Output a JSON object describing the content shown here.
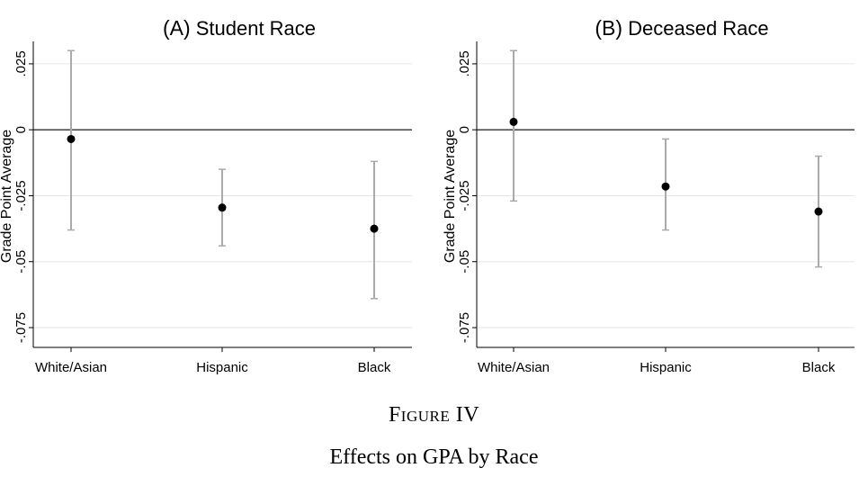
{
  "figure": {
    "label": "Figure IV",
    "caption": "Effects on GPA by Race"
  },
  "colors": {
    "point": "#000000",
    "error_bar": "#aaaaaa",
    "zero_line": "#000000",
    "grid": "#e6e6e6",
    "axis": "#000000"
  },
  "chart_data": [
    {
      "type": "scatter",
      "title_prefix": "(A)",
      "title": "Student Race",
      "ylabel": "Grade Point Average",
      "ylim": [
        -0.0825,
        0.0335
      ],
      "yticks": [
        0.025,
        0,
        -0.025,
        -0.05,
        -0.075
      ],
      "ytick_labels": [
        ".025",
        "0",
        "-.025",
        "-.05",
        "-.075"
      ],
      "grid": true,
      "categories": [
        "White/Asian",
        "Hispanic",
        "Black"
      ],
      "values": [
        -0.0035,
        -0.0295,
        -0.0375
      ],
      "ci_low": [
        -0.038,
        -0.044,
        -0.064
      ],
      "ci_high": [
        0.03,
        -0.015,
        -0.012
      ]
    },
    {
      "type": "scatter",
      "title_prefix": "(B)",
      "title": "Deceased Race",
      "ylabel": "Grade Point Average",
      "ylim": [
        -0.0825,
        0.0335
      ],
      "yticks": [
        0.025,
        0,
        -0.025,
        -0.05,
        -0.075
      ],
      "ytick_labels": [
        ".025",
        "0",
        "-.025",
        "-.05",
        "-.075"
      ],
      "grid": true,
      "categories": [
        "White/Asian",
        "Hispanic",
        "Black"
      ],
      "values": [
        0.003,
        -0.0215,
        -0.031
      ],
      "ci_low": [
        -0.027,
        -0.038,
        -0.052
      ],
      "ci_high": [
        0.03,
        -0.0035,
        -0.01
      ]
    }
  ]
}
